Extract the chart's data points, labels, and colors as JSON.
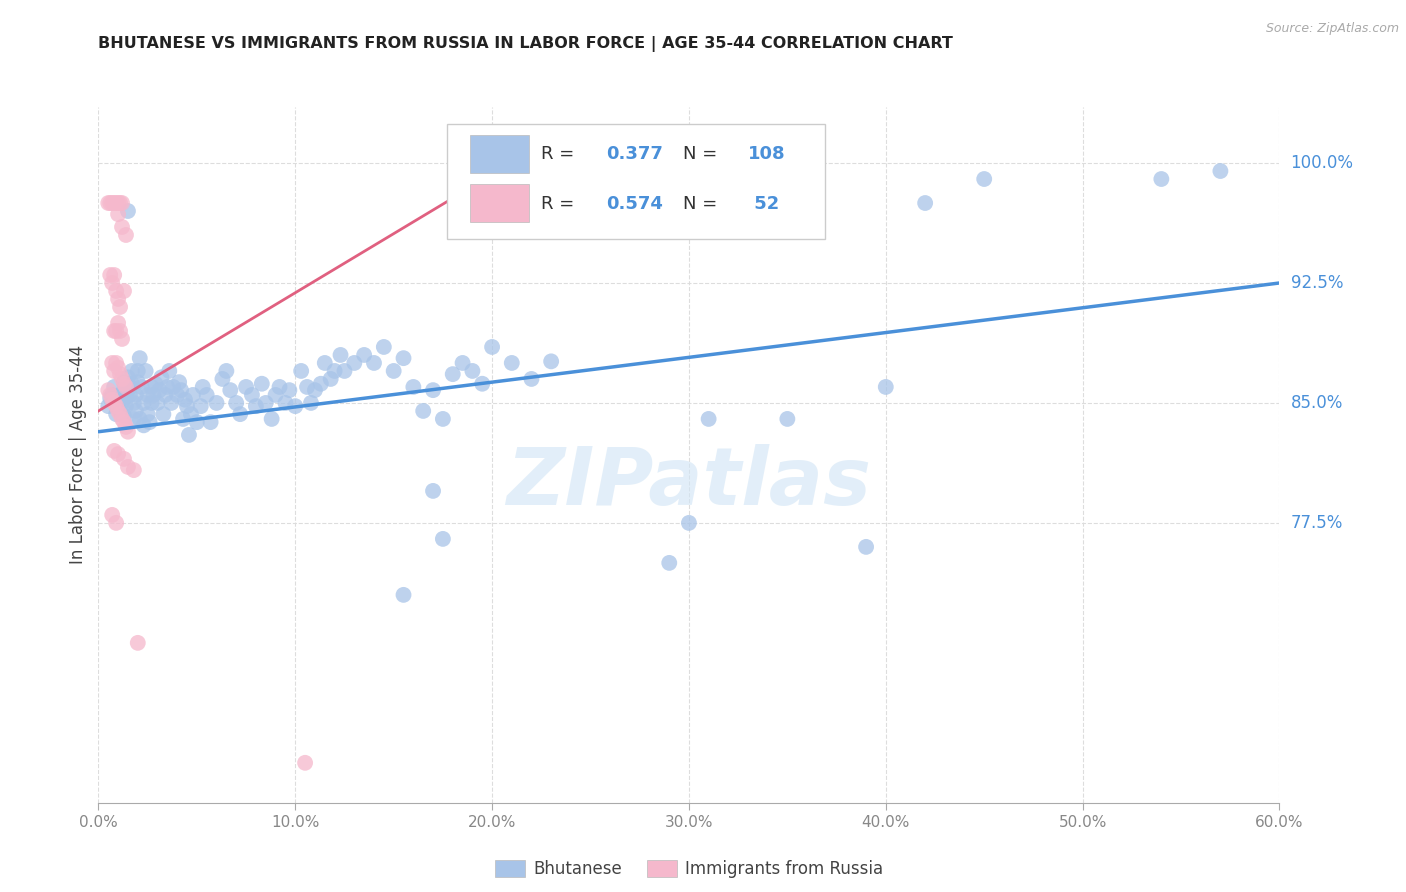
{
  "title": "BHUTANESE VS IMMIGRANTS FROM RUSSIA IN LABOR FORCE | AGE 35-44 CORRELATION CHART",
  "source": "Source: ZipAtlas.com",
  "ylabel": "In Labor Force | Age 35-44",
  "xmin": 0.0,
  "xmax": 0.6,
  "ymin": 0.6,
  "ymax": 1.035,
  "xticks": [
    0.0,
    0.1,
    0.2,
    0.3,
    0.4,
    0.5,
    0.6
  ],
  "xticklabels": [
    "0.0%",
    "10.0%",
    "20.0%",
    "30.0%",
    "40.0%",
    "50.0%",
    "60.0%"
  ],
  "ytick_positions": [
    0.775,
    0.85,
    0.925,
    1.0
  ],
  "yticklabels": [
    "77.5%",
    "85.0%",
    "92.5%",
    "100.0%"
  ],
  "r1": "0.377",
  "n1": "108",
  "r2": "0.574",
  "n2": "52",
  "blue_color": "#a8c4e8",
  "pink_color": "#f5b8cc",
  "trend_blue": "#4a90d9",
  "trend_pink": "#e06080",
  "label_blue_color": "#4a90d9",
  "label_pink_color": "#e06080",
  "watermark": "ZIPatlas",
  "watermark_color": "#d0e4f5",
  "blue_scatter": [
    [
      0.005,
      0.848
    ],
    [
      0.006,
      0.853
    ],
    [
      0.007,
      0.855
    ],
    [
      0.008,
      0.86
    ],
    [
      0.009,
      0.843
    ],
    [
      0.01,
      0.848
    ],
    [
      0.01,
      0.852
    ],
    [
      0.011,
      0.845
    ],
    [
      0.011,
      0.855
    ],
    [
      0.012,
      0.85
    ],
    [
      0.012,
      0.856
    ],
    [
      0.013,
      0.863
    ],
    [
      0.013,
      0.842
    ],
    [
      0.014,
      0.848
    ],
    [
      0.014,
      0.854
    ],
    [
      0.015,
      0.858
    ],
    [
      0.015,
      0.866
    ],
    [
      0.016,
      0.855
    ],
    [
      0.016,
      0.86
    ],
    [
      0.017,
      0.862
    ],
    [
      0.017,
      0.87
    ],
    [
      0.018,
      0.85
    ],
    [
      0.018,
      0.84
    ],
    [
      0.019,
      0.845
    ],
    [
      0.019,
      0.855
    ],
    [
      0.02,
      0.863
    ],
    [
      0.02,
      0.87
    ],
    [
      0.021,
      0.84
    ],
    [
      0.021,
      0.878
    ],
    [
      0.022,
      0.86
    ],
    [
      0.023,
      0.85
    ],
    [
      0.023,
      0.836
    ],
    [
      0.024,
      0.87
    ],
    [
      0.025,
      0.843
    ],
    [
      0.025,
      0.855
    ],
    [
      0.026,
      0.838
    ],
    [
      0.027,
      0.86
    ],
    [
      0.027,
      0.85
    ],
    [
      0.028,
      0.855
    ],
    [
      0.029,
      0.862
    ],
    [
      0.03,
      0.85
    ],
    [
      0.031,
      0.858
    ],
    [
      0.032,
      0.866
    ],
    [
      0.033,
      0.843
    ],
    [
      0.034,
      0.855
    ],
    [
      0.035,
      0.86
    ],
    [
      0.036,
      0.87
    ],
    [
      0.037,
      0.85
    ],
    [
      0.038,
      0.86
    ],
    [
      0.04,
      0.855
    ],
    [
      0.041,
      0.863
    ],
    [
      0.042,
      0.858
    ],
    [
      0.043,
      0.84
    ],
    [
      0.044,
      0.852
    ],
    [
      0.045,
      0.848
    ],
    [
      0.046,
      0.83
    ],
    [
      0.047,
      0.843
    ],
    [
      0.048,
      0.855
    ],
    [
      0.05,
      0.838
    ],
    [
      0.052,
      0.848
    ],
    [
      0.053,
      0.86
    ],
    [
      0.055,
      0.855
    ],
    [
      0.057,
      0.838
    ],
    [
      0.06,
      0.85
    ],
    [
      0.063,
      0.865
    ],
    [
      0.065,
      0.87
    ],
    [
      0.067,
      0.858
    ],
    [
      0.07,
      0.85
    ],
    [
      0.072,
      0.843
    ],
    [
      0.075,
      0.86
    ],
    [
      0.078,
      0.855
    ],
    [
      0.08,
      0.848
    ],
    [
      0.083,
      0.862
    ],
    [
      0.085,
      0.85
    ],
    [
      0.088,
      0.84
    ],
    [
      0.09,
      0.855
    ],
    [
      0.092,
      0.86
    ],
    [
      0.095,
      0.85
    ],
    [
      0.097,
      0.858
    ],
    [
      0.1,
      0.848
    ],
    [
      0.103,
      0.87
    ],
    [
      0.106,
      0.86
    ],
    [
      0.108,
      0.85
    ],
    [
      0.11,
      0.858
    ],
    [
      0.113,
      0.862
    ],
    [
      0.115,
      0.875
    ],
    [
      0.118,
      0.865
    ],
    [
      0.12,
      0.87
    ],
    [
      0.123,
      0.88
    ],
    [
      0.125,
      0.87
    ],
    [
      0.13,
      0.875
    ],
    [
      0.135,
      0.88
    ],
    [
      0.14,
      0.875
    ],
    [
      0.145,
      0.885
    ],
    [
      0.15,
      0.87
    ],
    [
      0.155,
      0.878
    ],
    [
      0.16,
      0.86
    ],
    [
      0.165,
      0.845
    ],
    [
      0.17,
      0.858
    ],
    [
      0.175,
      0.84
    ],
    [
      0.18,
      0.868
    ],
    [
      0.185,
      0.875
    ],
    [
      0.19,
      0.87
    ],
    [
      0.195,
      0.862
    ],
    [
      0.2,
      0.885
    ],
    [
      0.21,
      0.875
    ],
    [
      0.22,
      0.865
    ],
    [
      0.23,
      0.876
    ],
    [
      0.17,
      0.795
    ],
    [
      0.175,
      0.765
    ],
    [
      0.155,
      0.73
    ],
    [
      0.31,
      0.84
    ],
    [
      0.39,
      0.76
    ],
    [
      0.42,
      0.975
    ],
    [
      0.45,
      0.99
    ],
    [
      0.015,
      0.97
    ],
    [
      0.54,
      0.99
    ],
    [
      0.57,
      0.995
    ],
    [
      0.3,
      0.775
    ],
    [
      0.29,
      0.75
    ],
    [
      0.35,
      0.84
    ],
    [
      0.4,
      0.86
    ]
  ],
  "pink_scatter": [
    [
      0.005,
      0.975
    ],
    [
      0.006,
      0.975
    ],
    [
      0.007,
      0.975
    ],
    [
      0.008,
      0.975
    ],
    [
      0.009,
      0.975
    ],
    [
      0.01,
      0.975
    ],
    [
      0.01,
      0.968
    ],
    [
      0.011,
      0.975
    ],
    [
      0.012,
      0.975
    ],
    [
      0.012,
      0.96
    ],
    [
      0.013,
      0.92
    ],
    [
      0.014,
      0.955
    ],
    [
      0.006,
      0.93
    ],
    [
      0.007,
      0.925
    ],
    [
      0.008,
      0.93
    ],
    [
      0.009,
      0.92
    ],
    [
      0.01,
      0.915
    ],
    [
      0.011,
      0.91
    ],
    [
      0.008,
      0.895
    ],
    [
      0.009,
      0.895
    ],
    [
      0.01,
      0.9
    ],
    [
      0.011,
      0.895
    ],
    [
      0.012,
      0.89
    ],
    [
      0.007,
      0.875
    ],
    [
      0.008,
      0.87
    ],
    [
      0.009,
      0.875
    ],
    [
      0.01,
      0.872
    ],
    [
      0.011,
      0.868
    ],
    [
      0.012,
      0.865
    ],
    [
      0.013,
      0.862
    ],
    [
      0.014,
      0.86
    ],
    [
      0.005,
      0.858
    ],
    [
      0.006,
      0.855
    ],
    [
      0.007,
      0.852
    ],
    [
      0.008,
      0.85
    ],
    [
      0.009,
      0.848
    ],
    [
      0.01,
      0.845
    ],
    [
      0.011,
      0.843
    ],
    [
      0.012,
      0.84
    ],
    [
      0.013,
      0.838
    ],
    [
      0.014,
      0.835
    ],
    [
      0.015,
      0.832
    ],
    [
      0.008,
      0.82
    ],
    [
      0.01,
      0.818
    ],
    [
      0.013,
      0.815
    ],
    [
      0.015,
      0.81
    ],
    [
      0.018,
      0.808
    ],
    [
      0.007,
      0.78
    ],
    [
      0.009,
      0.775
    ],
    [
      0.02,
      0.7
    ],
    [
      0.105,
      0.625
    ]
  ],
  "blue_trend_x": [
    0.0,
    0.6
  ],
  "blue_trend_y": [
    0.832,
    0.925
  ],
  "pink_trend_x": [
    0.0,
    0.18
  ],
  "pink_trend_y": [
    0.845,
    0.978
  ]
}
